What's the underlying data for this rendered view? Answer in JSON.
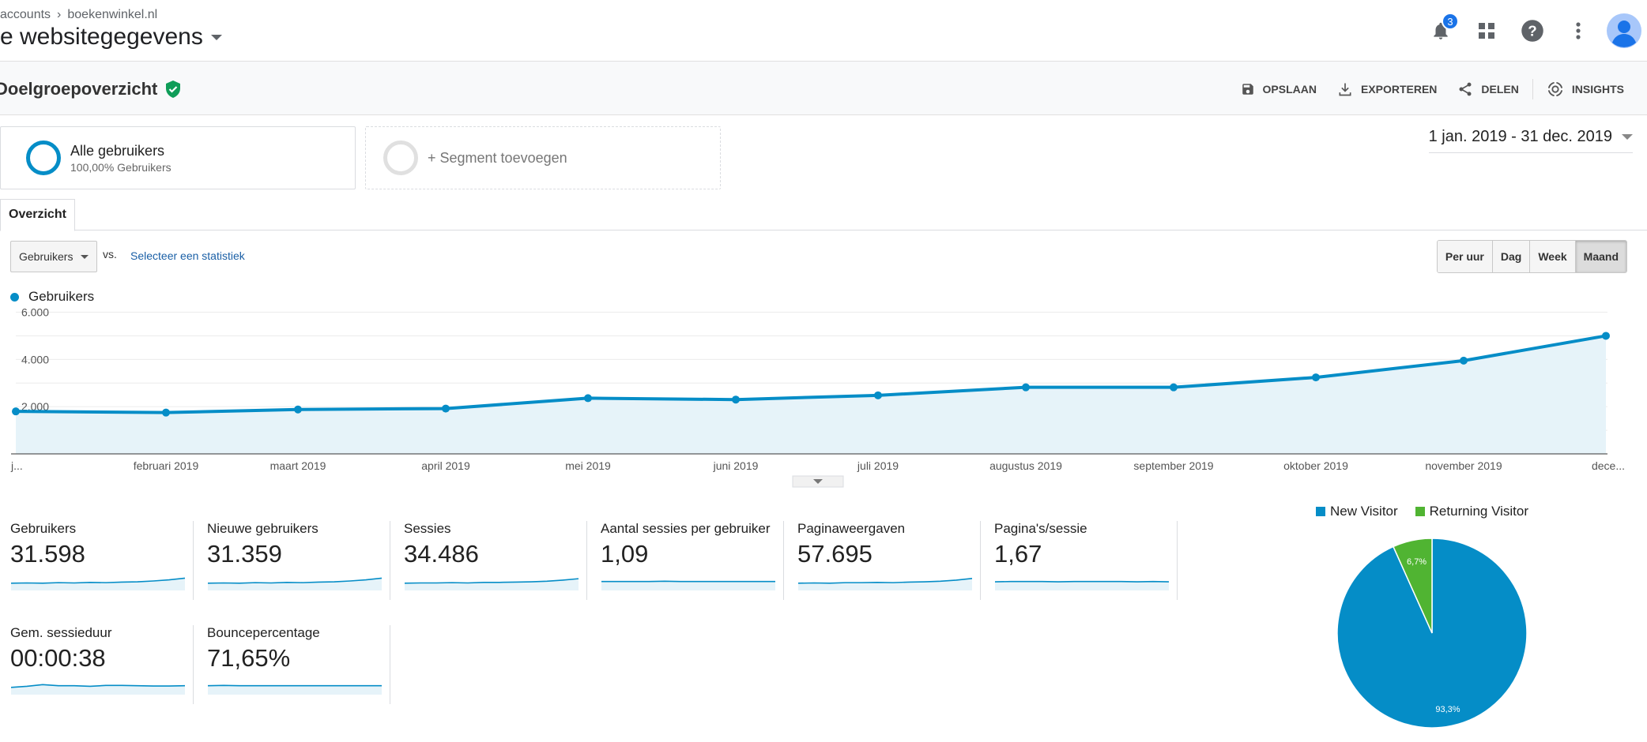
{
  "header": {
    "breadcrumb": [
      "accounts",
      "boekenwinkel.nl"
    ],
    "view_title": "e websitegegevens",
    "notifications_count": "3",
    "icons": [
      "bell-icon",
      "apps-grid-icon",
      "help-icon",
      "more-vert-icon",
      "account-avatar-icon"
    ]
  },
  "report": {
    "title": "Doelgroepoverzicht",
    "actions": {
      "save": "OPSLAAN",
      "export": "EXPORTEREN",
      "share": "DELEN",
      "insights": "INSIGHTS"
    }
  },
  "segments": {
    "active_name": "Alle gebruikers",
    "active_sub": "100,00% Gebruikers",
    "add_label": "+ Segment toevoegen"
  },
  "date_range": "1 jan. 2019 - 31 dec. 2019",
  "tabs": [
    "Overzicht"
  ],
  "controls": {
    "metric_select": "Gebruikers",
    "vs_label": "vs.",
    "select_stat": "Selecteer een statistiek",
    "granularity": [
      "Per uur",
      "Dag",
      "Week",
      "Maand"
    ],
    "granularity_active": "Maand"
  },
  "chart_data": {
    "type": "area",
    "series": [
      {
        "name": "Gebruikers",
        "values": [
          1800,
          1750,
          1880,
          1920,
          2360,
          2300,
          2480,
          2820,
          2820,
          3240,
          3950,
          5000
        ],
        "color": "#058dc7"
      }
    ],
    "categories": [
      "j...",
      "februari 2019",
      "maart 2019",
      "april 2019",
      "mei 2019",
      "juni 2019",
      "juli 2019",
      "augustus 2019",
      "september 2019",
      "oktober 2019",
      "november 2019",
      "dece..."
    ],
    "y_ticks": [
      "6.000",
      "4.000",
      "2.000"
    ],
    "ylim": [
      0,
      6000
    ],
    "legend_position": "top-left",
    "grid": true
  },
  "metrics": [
    {
      "label": "Gebruikers",
      "value": "31.598",
      "trend": [
        20,
        21,
        20,
        22,
        21,
        23,
        22,
        24,
        25,
        28,
        32,
        38
      ]
    },
    {
      "label": "Nieuwe gebruikers",
      "value": "31.359",
      "trend": [
        20,
        21,
        20,
        22,
        21,
        23,
        22,
        24,
        25,
        28,
        32,
        38
      ]
    },
    {
      "label": "Sessies",
      "value": "34.486",
      "trend": [
        20,
        21,
        21,
        22,
        21,
        23,
        23,
        24,
        25,
        27,
        31,
        36
      ]
    },
    {
      "label": "Aantal sessies per gebruiker",
      "value": "1,09",
      "trend": [
        26,
        26,
        26,
        26,
        27,
        26,
        26,
        26,
        26,
        26,
        26,
        26
      ]
    },
    {
      "label": "Paginaweergaven",
      "value": "57.695",
      "trend": [
        20,
        21,
        20,
        22,
        22,
        23,
        22,
        24,
        25,
        27,
        31,
        37
      ]
    },
    {
      "label": "Pagina's/sessie",
      "value": "1,67",
      "trend": [
        25,
        26,
        26,
        26,
        25,
        26,
        26,
        26,
        26,
        25,
        26,
        25
      ]
    },
    {
      "label": "Gem. sessieduur",
      "value": "00:00:38",
      "trend": [
        20,
        24,
        30,
        26,
        26,
        24,
        27,
        27,
        26,
        25,
        25,
        26
      ]
    },
    {
      "label": "Bouncepercentage",
      "value": "71,65%",
      "trend": [
        26,
        27,
        26,
        26,
        26,
        26,
        26,
        26,
        26,
        26,
        26,
        26
      ]
    }
  ],
  "pie": {
    "slices": [
      {
        "name": "New Visitor",
        "value": 93.3,
        "label": "93,3%",
        "color": "#058dc7"
      },
      {
        "name": "Returning Visitor",
        "value": 6.7,
        "label": "6,7%",
        "color": "#50b432"
      }
    ]
  }
}
